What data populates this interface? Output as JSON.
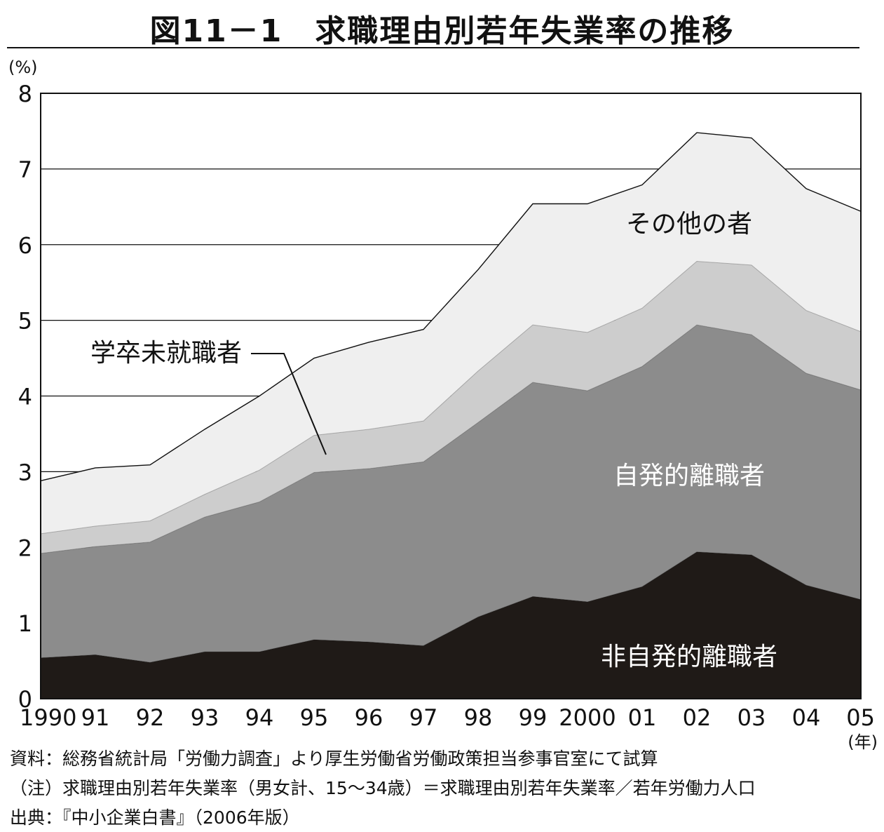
{
  "title": "図11－1　求職理由別若年失業率の推移",
  "chart_data": {
    "type": "area",
    "stacked": true,
    "y_unit": "(%)",
    "x_unit": "(年)",
    "ylim": [
      0,
      8
    ],
    "y_ticks": [
      "0",
      "1",
      "2",
      "3",
      "4",
      "5",
      "6",
      "7",
      "8"
    ],
    "gridlines": "horizontal",
    "categories": [
      "1990",
      "91",
      "92",
      "93",
      "94",
      "95",
      "96",
      "97",
      "98",
      "99",
      "2000",
      "01",
      "02",
      "03",
      "04",
      "05"
    ],
    "series": [
      {
        "name": "非自発的離職者",
        "color": "#1f1a17",
        "values": [
          0.54,
          0.58,
          0.48,
          0.62,
          0.62,
          0.78,
          0.75,
          0.7,
          1.08,
          1.35,
          1.28,
          1.48,
          1.94,
          1.9,
          1.5,
          1.31
        ]
      },
      {
        "name": "自発的離職者",
        "color": "#8c8c8c",
        "values": [
          1.38,
          1.43,
          1.59,
          1.78,
          1.98,
          2.21,
          2.29,
          2.43,
          2.57,
          2.83,
          2.79,
          2.91,
          3.0,
          2.91,
          2.8,
          2.77
        ]
      },
      {
        "name": "学卒未就職者",
        "color": "#cdcdcd",
        "values": [
          0.26,
          0.27,
          0.28,
          0.3,
          0.42,
          0.49,
          0.52,
          0.54,
          0.68,
          0.76,
          0.77,
          0.77,
          0.84,
          0.92,
          0.83,
          0.77
        ]
      },
      {
        "name": "その他の者",
        "color": "#efefef",
        "values": [
          0.7,
          0.77,
          0.74,
          0.86,
          0.98,
          1.02,
          1.15,
          1.21,
          1.34,
          1.6,
          1.7,
          1.63,
          1.7,
          1.68,
          1.61,
          1.59
        ]
      }
    ]
  },
  "notes": {
    "source": "資料：総務省統計局「労働力調査」より厚生労働省労働政策担当参事官室にて試算",
    "note": "（注）求職理由別若年失業率（男女計、15～34歳）＝求職理由別若年失業率／若年労働力人口",
    "origin": "出典：『中小企業白書』（2006年版）"
  }
}
